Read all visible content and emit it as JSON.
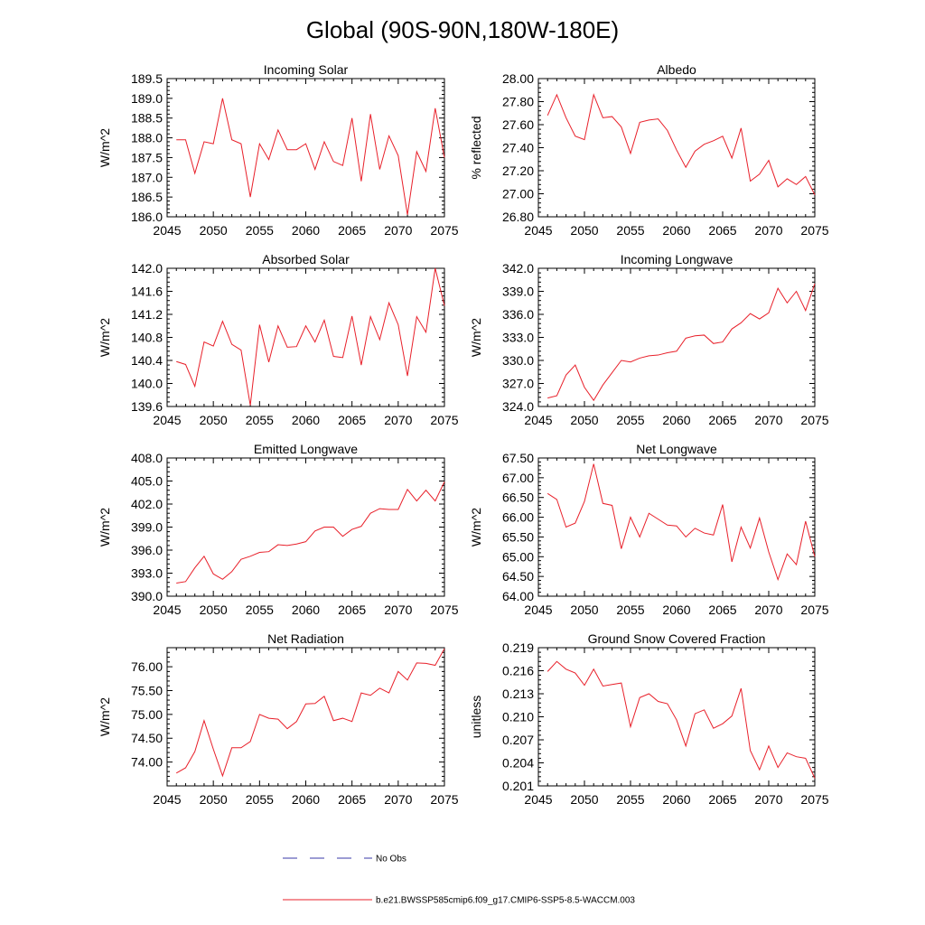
{
  "figure": {
    "title": "Global (90S-90N,180W-180E)",
    "line_color": "#e8202a",
    "obs_color": "#3a3aa8"
  },
  "legend": {
    "obs_label": "No Obs",
    "model_label": "b.e21.BWSSP585cmip6.f09_g17.CMIP6-SSP5-8.5-WACCM.003"
  },
  "chart_data": [
    {
      "type": "line",
      "title": "Incoming Solar",
      "ylabel": "W/m^2",
      "xlim": [
        2045,
        2075
      ],
      "ylim": [
        186.0,
        189.5
      ],
      "xticks": [
        2045,
        2050,
        2055,
        2060,
        2065,
        2070,
        2075
      ],
      "xtick_labels": [
        "2045",
        "2050",
        "2055",
        "2060",
        "2065",
        "2070",
        "2075"
      ],
      "yticks": [
        186.0,
        186.5,
        187.0,
        187.5,
        188.0,
        188.5,
        189.0,
        189.5
      ],
      "ytick_labels": [
        "186.0",
        "186.5",
        "187.0",
        "187.5",
        "188.0",
        "188.5",
        "189.0",
        "189.5"
      ],
      "x": [
        2046,
        2047,
        2048,
        2049,
        2050,
        2051,
        2052,
        2053,
        2054,
        2055,
        2056,
        2057,
        2058,
        2059,
        2060,
        2061,
        2062,
        2063,
        2064,
        2065,
        2066,
        2067,
        2068,
        2069,
        2070,
        2071,
        2072,
        2073,
        2074,
        2075
      ],
      "y": [
        187.95,
        187.95,
        187.1,
        187.9,
        187.85,
        189.0,
        187.95,
        187.85,
        186.5,
        187.85,
        187.45,
        188.2,
        187.7,
        187.7,
        187.85,
        187.2,
        187.9,
        187.4,
        187.3,
        188.5,
        186.9,
        188.6,
        187.2,
        188.05,
        187.55,
        186.05,
        187.65,
        187.15,
        188.75,
        187.5
      ]
    },
    {
      "type": "line",
      "title": "Albedo",
      "ylabel": "% reflected",
      "xlim": [
        2045,
        2075
      ],
      "ylim": [
        26.8,
        28.0
      ],
      "xticks": [
        2045,
        2050,
        2055,
        2060,
        2065,
        2070,
        2075
      ],
      "xtick_labels": [
        "2045",
        "2050",
        "2055",
        "2060",
        "2065",
        "2070",
        "2075"
      ],
      "yticks": [
        26.8,
        27.0,
        27.2,
        27.4,
        27.6,
        27.8,
        28.0
      ],
      "ytick_labels": [
        "26.80",
        "27.00",
        "27.20",
        "27.40",
        "27.60",
        "27.80",
        "28.00"
      ],
      "x": [
        2046,
        2047,
        2048,
        2049,
        2050,
        2051,
        2052,
        2053,
        2054,
        2055,
        2056,
        2057,
        2058,
        2059,
        2060,
        2061,
        2062,
        2063,
        2064,
        2065,
        2066,
        2067,
        2068,
        2069,
        2070,
        2071,
        2072,
        2073,
        2074,
        2075
      ],
      "y": [
        27.68,
        27.86,
        27.66,
        27.5,
        27.47,
        27.86,
        27.66,
        27.67,
        27.58,
        27.35,
        27.62,
        27.64,
        27.65,
        27.55,
        27.38,
        27.23,
        27.37,
        27.43,
        27.46,
        27.5,
        27.31,
        27.57,
        27.11,
        27.17,
        27.29,
        27.06,
        27.13,
        27.08,
        27.15,
        26.99
      ]
    },
    {
      "type": "line",
      "title": "Absorbed Solar",
      "ylabel": "W/m^2",
      "xlim": [
        2045,
        2075
      ],
      "ylim": [
        139.6,
        142.0
      ],
      "xticks": [
        2045,
        2050,
        2055,
        2060,
        2065,
        2070,
        2075
      ],
      "xtick_labels": [
        "2045",
        "2050",
        "2055",
        "2060",
        "2065",
        "2070",
        "2075"
      ],
      "yticks": [
        139.6,
        140.0,
        140.4,
        140.8,
        141.2,
        141.6,
        142.0
      ],
      "ytick_labels": [
        "139.6",
        "140.0",
        "140.4",
        "140.8",
        "141.2",
        "141.6",
        "142.0"
      ],
      "x": [
        2046,
        2047,
        2048,
        2049,
        2050,
        2051,
        2052,
        2053,
        2054,
        2055,
        2056,
        2057,
        2058,
        2059,
        2060,
        2061,
        2062,
        2063,
        2064,
        2065,
        2066,
        2067,
        2068,
        2069,
        2070,
        2071,
        2072,
        2073,
        2074,
        2075
      ],
      "y": [
        140.38,
        140.33,
        139.95,
        140.72,
        140.65,
        141.08,
        140.68,
        140.58,
        139.62,
        141.02,
        140.37,
        141.0,
        140.63,
        140.64,
        141.0,
        140.72,
        141.1,
        140.47,
        140.45,
        141.17,
        140.32,
        141.16,
        140.76,
        141.4,
        141.02,
        140.13,
        141.16,
        140.89,
        142.0,
        141.35
      ]
    },
    {
      "type": "line",
      "title": "Incoming Longwave",
      "ylabel": "W/m^2",
      "xlim": [
        2045,
        2075
      ],
      "ylim": [
        324.0,
        342.0
      ],
      "xticks": [
        2045,
        2050,
        2055,
        2060,
        2065,
        2070,
        2075
      ],
      "xtick_labels": [
        "2045",
        "2050",
        "2055",
        "2060",
        "2065",
        "2070",
        "2075"
      ],
      "yticks": [
        324.0,
        327.0,
        330.0,
        333.0,
        336.0,
        339.0,
        342.0
      ],
      "ytick_labels": [
        "324.0",
        "327.0",
        "330.0",
        "333.0",
        "336.0",
        "339.0",
        "342.0"
      ],
      "x": [
        2046,
        2047,
        2048,
        2049,
        2050,
        2051,
        2052,
        2053,
        2054,
        2055,
        2056,
        2057,
        2058,
        2059,
        2060,
        2061,
        2062,
        2063,
        2064,
        2065,
        2066,
        2067,
        2068,
        2069,
        2070,
        2071,
        2072,
        2073,
        2074,
        2075
      ],
      "y": [
        325.1,
        325.4,
        328.1,
        329.4,
        326.5,
        324.8,
        326.8,
        328.4,
        330.0,
        329.8,
        330.3,
        330.6,
        330.7,
        331.0,
        331.2,
        332.9,
        333.2,
        333.3,
        332.2,
        332.4,
        334.1,
        334.9,
        336.1,
        335.4,
        336.2,
        339.4,
        337.5,
        339.0,
        336.5,
        340.0
      ]
    },
    {
      "type": "line",
      "title": "Emitted Longwave",
      "ylabel": "W/m^2",
      "xlim": [
        2045,
        2075
      ],
      "ylim": [
        390.0,
        408.0
      ],
      "xticks": [
        2045,
        2050,
        2055,
        2060,
        2065,
        2070,
        2075
      ],
      "xtick_labels": [
        "2045",
        "2050",
        "2055",
        "2060",
        "2065",
        "2070",
        "2075"
      ],
      "yticks": [
        390.0,
        393.0,
        396.0,
        399.0,
        402.0,
        405.0,
        408.0
      ],
      "ytick_labels": [
        "390.0",
        "393.0",
        "396.0",
        "399.0",
        "402.0",
        "405.0",
        "408.0"
      ],
      "x": [
        2046,
        2047,
        2048,
        2049,
        2050,
        2051,
        2052,
        2053,
        2054,
        2055,
        2056,
        2057,
        2058,
        2059,
        2060,
        2061,
        2062,
        2063,
        2064,
        2065,
        2066,
        2067,
        2068,
        2069,
        2070,
        2071,
        2072,
        2073,
        2074,
        2075
      ],
      "y": [
        391.7,
        391.9,
        393.7,
        395.2,
        392.9,
        392.2,
        393.2,
        394.8,
        395.2,
        395.7,
        395.8,
        396.7,
        396.6,
        396.8,
        397.1,
        398.5,
        399.0,
        399.0,
        397.8,
        398.7,
        399.1,
        400.8,
        401.4,
        401.3,
        401.3,
        403.9,
        402.4,
        403.8,
        402.4,
        404.9
      ]
    },
    {
      "type": "line",
      "title": "Net Longwave",
      "ylabel": "W/m^2",
      "xlim": [
        2045,
        2075
      ],
      "ylim": [
        64.0,
        67.5
      ],
      "xticks": [
        2045,
        2050,
        2055,
        2060,
        2065,
        2070,
        2075
      ],
      "xtick_labels": [
        "2045",
        "2050",
        "2055",
        "2060",
        "2065",
        "2070",
        "2075"
      ],
      "yticks": [
        64.0,
        64.5,
        65.0,
        65.5,
        66.0,
        66.5,
        67.0,
        67.5
      ],
      "ytick_labels": [
        "64.00",
        "64.50",
        "65.00",
        "65.50",
        "66.00",
        "66.50",
        "67.00",
        "67.50"
      ],
      "x": [
        2046,
        2047,
        2048,
        2049,
        2050,
        2051,
        2052,
        2053,
        2054,
        2055,
        2056,
        2057,
        2058,
        2059,
        2060,
        2061,
        2062,
        2063,
        2064,
        2065,
        2066,
        2067,
        2068,
        2069,
        2070,
        2071,
        2072,
        2073,
        2074,
        2075
      ],
      "y": [
        66.6,
        66.45,
        65.75,
        65.85,
        66.4,
        67.35,
        66.35,
        66.3,
        65.2,
        66.0,
        65.5,
        66.1,
        65.95,
        65.8,
        65.78,
        65.5,
        65.72,
        65.6,
        65.55,
        66.32,
        64.87,
        65.75,
        65.22,
        65.98,
        65.12,
        64.42,
        65.07,
        64.8,
        65.9,
        65.0
      ]
    },
    {
      "type": "line",
      "title": "Net Radiation",
      "ylabel": "W/m^2",
      "xlim": [
        2045,
        2075
      ],
      "ylim": [
        73.5,
        76.4
      ],
      "xticks": [
        2045,
        2050,
        2055,
        2060,
        2065,
        2070,
        2075
      ],
      "xtick_labels": [
        "2045",
        "2050",
        "2055",
        "2060",
        "2065",
        "2070",
        "2075"
      ],
      "yticks": [
        74.0,
        74.5,
        75.0,
        75.5,
        76.0
      ],
      "ytick_labels": [
        "74.00",
        "74.50",
        "75.00",
        "75.50",
        "76.00"
      ],
      "x": [
        2046,
        2047,
        2048,
        2049,
        2050,
        2051,
        2052,
        2053,
        2054,
        2055,
        2056,
        2057,
        2058,
        2059,
        2060,
        2061,
        2062,
        2063,
        2064,
        2065,
        2066,
        2067,
        2068,
        2069,
        2070,
        2071,
        2072,
        2073,
        2074,
        2075
      ],
      "y": [
        73.77,
        73.88,
        74.22,
        74.87,
        74.27,
        73.71,
        74.3,
        74.3,
        74.43,
        75.0,
        74.92,
        74.9,
        74.7,
        74.85,
        75.22,
        75.23,
        75.38,
        74.87,
        74.92,
        74.85,
        75.45,
        75.4,
        75.55,
        75.45,
        75.9,
        75.72,
        76.08,
        76.07,
        76.03,
        76.38
      ]
    },
    {
      "type": "line",
      "title": "Ground Snow Covered Fraction",
      "ylabel": "unitless",
      "xlim": [
        2045,
        2075
      ],
      "ylim": [
        0.201,
        0.219
      ],
      "xticks": [
        2045,
        2050,
        2055,
        2060,
        2065,
        2070,
        2075
      ],
      "xtick_labels": [
        "2045",
        "2050",
        "2055",
        "2060",
        "2065",
        "2070",
        "2075"
      ],
      "yticks": [
        0.201,
        0.204,
        0.207,
        0.21,
        0.213,
        0.216,
        0.219
      ],
      "ytick_labels": [
        "0.201",
        "0.204",
        "0.207",
        "0.210",
        "0.213",
        "0.216",
        "0.219"
      ],
      "x": [
        2046,
        2047,
        2048,
        2049,
        2050,
        2051,
        2052,
        2053,
        2054,
        2055,
        2056,
        2057,
        2058,
        2059,
        2060,
        2061,
        2062,
        2063,
        2064,
        2065,
        2066,
        2067,
        2068,
        2069,
        2070,
        2071,
        2072,
        2073,
        2074,
        2075
      ],
      "y": [
        0.2159,
        0.2172,
        0.2162,
        0.2157,
        0.2141,
        0.2162,
        0.214,
        0.2142,
        0.2144,
        0.2087,
        0.2125,
        0.213,
        0.212,
        0.2117,
        0.2096,
        0.2062,
        0.2104,
        0.2109,
        0.2085,
        0.2091,
        0.2101,
        0.2137,
        0.2056,
        0.2031,
        0.2062,
        0.2034,
        0.2053,
        0.2048,
        0.2046,
        0.202
      ]
    }
  ]
}
